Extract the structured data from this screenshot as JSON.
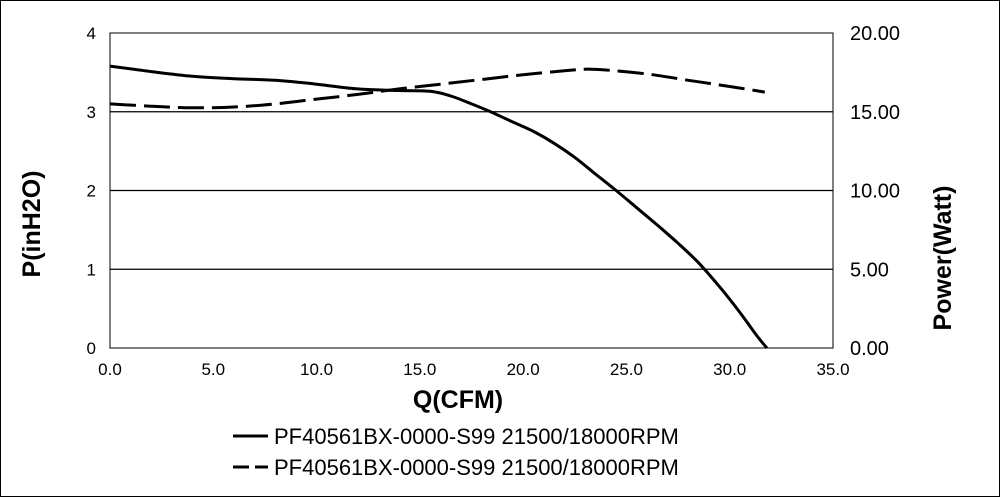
{
  "chart_data": {
    "type": "line",
    "xlabel": "Q(CFM)",
    "ylabel_left": "P(inH2O)",
    "ylabel_right": "Power(Watt)",
    "xlim": [
      0,
      35
    ],
    "ylim_left": [
      0,
      4
    ],
    "ylim_right": [
      0,
      20
    ],
    "x_ticks": [
      "0.0",
      "5.0",
      "10.0",
      "15.0",
      "20.0",
      "25.0",
      "30.0",
      "35.0"
    ],
    "y_ticks_left": [
      "0",
      "1",
      "2",
      "3",
      "4"
    ],
    "y_ticks_right": [
      "0.00",
      "5.00",
      "10.00",
      "15.00",
      "20.00"
    ],
    "grid": "horizontal",
    "legend_position": "bottom",
    "series": [
      {
        "name": "PF40561BX-0000-S99 21500/18000RPM",
        "style": "solid",
        "axis": "left",
        "x": [
          0,
          2,
          4,
          6,
          8,
          10,
          12,
          14,
          15.5,
          16.5,
          17.5,
          18.5,
          19.5,
          20.5,
          21.5,
          22.5,
          23.5,
          24.5,
          25.5,
          26.5,
          27.5,
          28.5,
          29.5,
          30.5,
          31.3,
          31.8
        ],
        "y": [
          3.58,
          3.51,
          3.45,
          3.42,
          3.4,
          3.35,
          3.29,
          3.27,
          3.26,
          3.2,
          3.1,
          2.99,
          2.87,
          2.75,
          2.6,
          2.42,
          2.21,
          2.0,
          1.78,
          1.56,
          1.33,
          1.08,
          0.78,
          0.45,
          0.16,
          0.0
        ]
      },
      {
        "name": "PF40561BX-0000-S99 21500/18000RPM",
        "style": "dashed",
        "axis": "right",
        "x": [
          0,
          2,
          4,
          6,
          8,
          10,
          12,
          14,
          16,
          18,
          20,
          22,
          23,
          24,
          26,
          28,
          30,
          31.7
        ],
        "y": [
          15.5,
          15.35,
          15.25,
          15.3,
          15.5,
          15.8,
          16.1,
          16.45,
          16.75,
          17.05,
          17.35,
          17.6,
          17.7,
          17.65,
          17.4,
          17.0,
          16.6,
          16.25
        ]
      }
    ]
  }
}
